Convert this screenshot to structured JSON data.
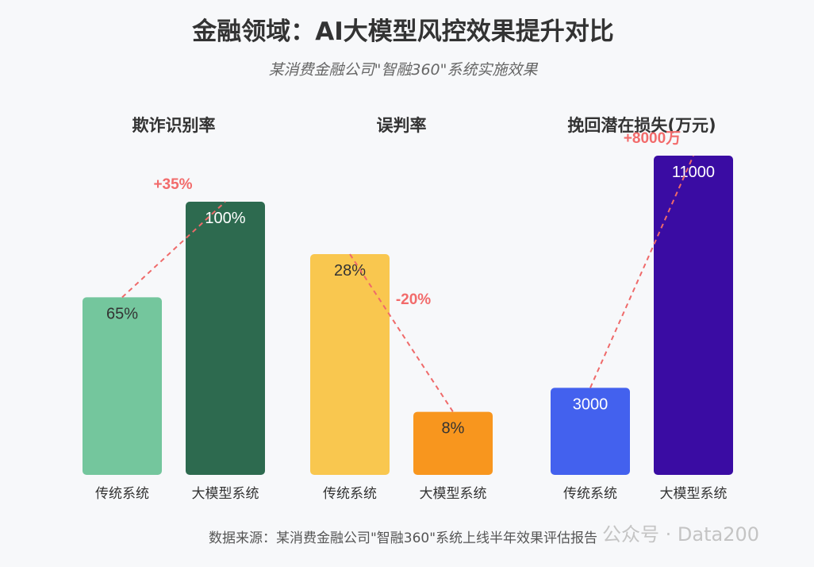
{
  "title": "金融领域：AI大模型风控效果提升对比",
  "subtitle": "某消费金融公司\"智融360\"系统实施效果",
  "source": "数据来源：某消费金融公司\"智融360\"系统上线半年效果评估报告",
  "watermark": "公众号 · Data200",
  "chart_data": [
    {
      "type": "bar",
      "title": "欺诈识别率",
      "categories": [
        "传统系统",
        "大模型系统"
      ],
      "values": [
        65,
        100
      ],
      "value_labels": [
        "65%",
        "100%"
      ],
      "colors": [
        "#74c69d",
        "#2d6a4f"
      ],
      "label_colors": [
        "#333333",
        "#ffffff"
      ],
      "change_label": "+35%",
      "ylim": [
        0,
        100
      ]
    },
    {
      "type": "bar",
      "title": "误判率",
      "categories": [
        "传统系统",
        "大模型系统"
      ],
      "values": [
        28,
        8
      ],
      "value_labels": [
        "28%",
        "8%"
      ],
      "colors": [
        "#f9c74f",
        "#f8961e"
      ],
      "label_colors": [
        "#333333",
        "#333333"
      ],
      "change_label": "-20%",
      "ylim": [
        0,
        50
      ]
    },
    {
      "type": "bar",
      "title": "挽回潜在损失(万元)",
      "categories": [
        "传统系统",
        "大模型系统"
      ],
      "values": [
        3000,
        11000
      ],
      "value_labels": [
        "3000",
        "11000"
      ],
      "colors": [
        "#4361ee",
        "#3a0ca3"
      ],
      "label_colors": [
        "#ffffff",
        "#ffffff"
      ],
      "change_label": "+8000万",
      "ylim": [
        0,
        11000
      ]
    }
  ]
}
